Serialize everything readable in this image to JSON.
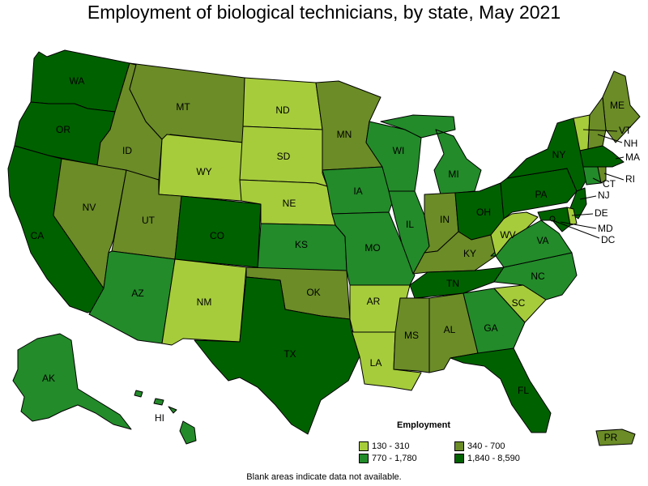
{
  "title": "Employment of biological technicians, by state, May 2021",
  "legend": {
    "title": "Employment",
    "items": [
      {
        "label": "130 - 310",
        "color": "#a6cc3c"
      },
      {
        "label": "340 - 700",
        "color": "#6b8c27"
      },
      {
        "label": "770 - 1,780",
        "color": "#238b2a"
      },
      {
        "label": "1,840 - 8,590",
        "color": "#006100"
      }
    ]
  },
  "note": "Blank areas indicate data not available.",
  "states": [
    {
      "abbr": "WA",
      "class": 3
    },
    {
      "abbr": "OR",
      "class": 3
    },
    {
      "abbr": "CA",
      "class": 3
    },
    {
      "abbr": "NV",
      "class": 1
    },
    {
      "abbr": "ID",
      "class": 1
    },
    {
      "abbr": "MT",
      "class": 1
    },
    {
      "abbr": "WY",
      "class": 0
    },
    {
      "abbr": "UT",
      "class": 1
    },
    {
      "abbr": "AZ",
      "class": 2
    },
    {
      "abbr": "CO",
      "class": 3
    },
    {
      "abbr": "NM",
      "class": 0
    },
    {
      "abbr": "ND",
      "class": 0
    },
    {
      "abbr": "SD",
      "class": 0
    },
    {
      "abbr": "NE",
      "class": 0
    },
    {
      "abbr": "KS",
      "class": 2
    },
    {
      "abbr": "OK",
      "class": 1
    },
    {
      "abbr": "TX",
      "class": 3
    },
    {
      "abbr": "MN",
      "class": 1
    },
    {
      "abbr": "IA",
      "class": 2
    },
    {
      "abbr": "MO",
      "class": 2
    },
    {
      "abbr": "AR",
      "class": 0
    },
    {
      "abbr": "LA",
      "class": 0
    },
    {
      "abbr": "WI",
      "class": 2
    },
    {
      "abbr": "IL",
      "class": 2
    },
    {
      "abbr": "MI",
      "class": 2
    },
    {
      "abbr": "IN",
      "class": 1
    },
    {
      "abbr": "OH",
      "class": 3
    },
    {
      "abbr": "KY",
      "class": 1
    },
    {
      "abbr": "TN",
      "class": 3
    },
    {
      "abbr": "MS",
      "class": 1
    },
    {
      "abbr": "AL",
      "class": 1
    },
    {
      "abbr": "GA",
      "class": 2
    },
    {
      "abbr": "FL",
      "class": 3
    },
    {
      "abbr": "SC",
      "class": 0
    },
    {
      "abbr": "NC",
      "class": 2
    },
    {
      "abbr": "VA",
      "class": 2
    },
    {
      "abbr": "WV",
      "class": 0
    },
    {
      "abbr": "PA",
      "class": 3
    },
    {
      "abbr": "NY",
      "class": 3
    },
    {
      "abbr": "ME",
      "class": 1
    },
    {
      "abbr": "VT",
      "class": 0
    },
    {
      "abbr": "NH",
      "class": 1
    },
    {
      "abbr": "MA",
      "class": 3
    },
    {
      "abbr": "CT",
      "class": 2
    },
    {
      "abbr": "RI",
      "class": 1
    },
    {
      "abbr": "NJ",
      "class": 3
    },
    {
      "abbr": "DE",
      "class": 0
    },
    {
      "abbr": "MD",
      "class": 3
    },
    {
      "abbr": "DC",
      "class": 3
    },
    {
      "abbr": "AK",
      "class": 2
    },
    {
      "abbr": "HI",
      "class": 2
    },
    {
      "abbr": "PR",
      "class": 1
    }
  ]
}
